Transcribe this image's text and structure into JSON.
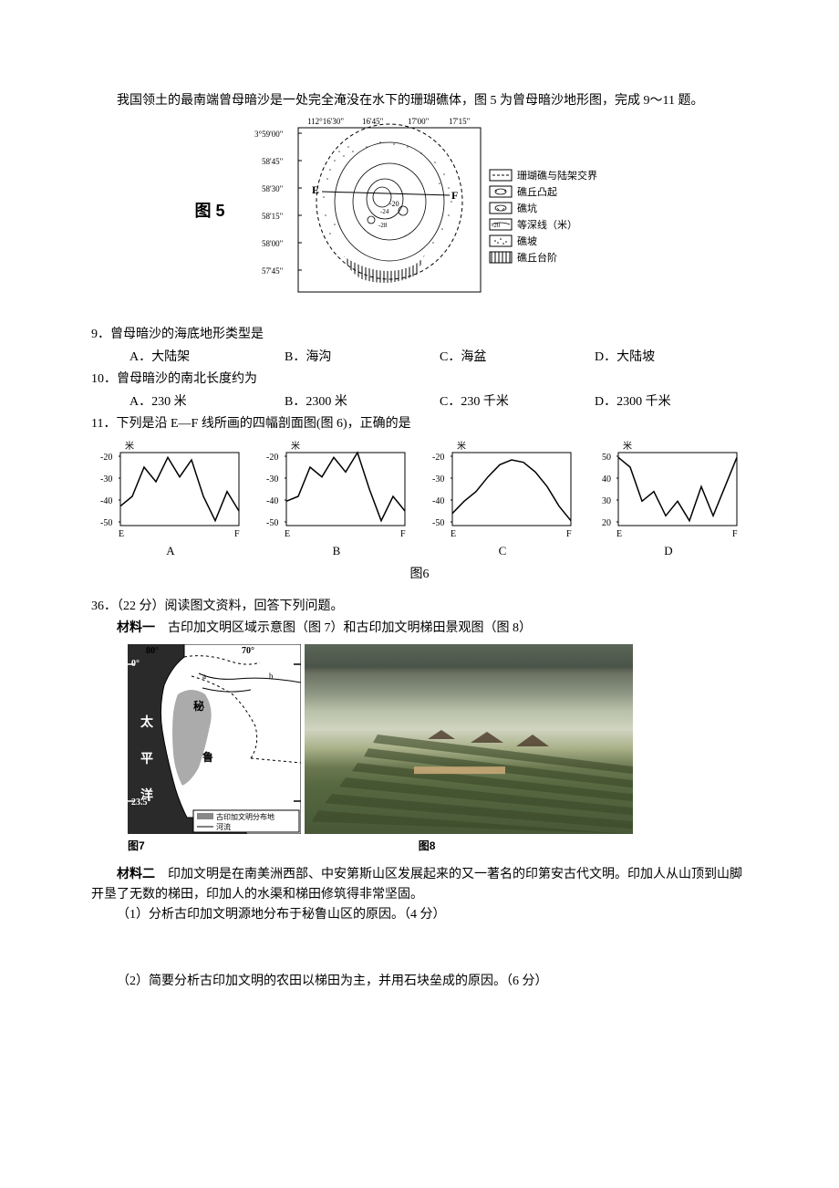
{
  "intro": "我国领土的最南端曾母暗沙是一处完全淹没在水下的珊瑚礁体，图 5 为曾母暗沙地形图，完成 9～11 题。",
  "figure5": {
    "label": "图 5",
    "lon_labels": [
      "112°16'30\"",
      "16'45\"",
      "17'00\"",
      "17'15\""
    ],
    "lat_labels": [
      "3°59'00\"",
      "58'45\"",
      "58'30\"",
      "58'15\"",
      "58'00\"",
      "57'45\""
    ],
    "points": {
      "E": "E",
      "F": "F"
    },
    "legend": [
      {
        "pattern": "dash",
        "label": "珊瑚礁与陆架交界"
      },
      {
        "pattern": "contour-peak",
        "label": "礁丘凸起"
      },
      {
        "pattern": "contour-pit",
        "label": "礁坑"
      },
      {
        "pattern": "contour-20",
        "label": "等深线（米）"
      },
      {
        "pattern": "dots",
        "label": "礁坡"
      },
      {
        "pattern": "hatch",
        "label": "礁丘台阶"
      }
    ],
    "contour_values": [
      "-20",
      "-24",
      "-28"
    ],
    "colors": {
      "outline": "#000000",
      "background": "#ffffff"
    }
  },
  "q9": {
    "number": "9",
    "text": "．曾母暗沙的海底地形类型是",
    "options": {
      "A": "A．大陆架",
      "B": "B．海沟",
      "C": "C．海盆",
      "D": "D．大陆坡"
    }
  },
  "q10": {
    "number": "10",
    "text": "．曾母暗沙的南北长度约为",
    "options": {
      "A": "A．230 米",
      "B": "B．2300 米",
      "C": "C．230 千米",
      "D": "D．2300 千米"
    }
  },
  "q11": {
    "number": "11",
    "text": "．下列是沿 E—F 线所画的四幅剖面图(图 6)，正确的是"
  },
  "profiles": {
    "yaxis_label": "米",
    "A": {
      "ylim": [
        -50,
        -20
      ],
      "yticks": [
        -50,
        -40,
        -30,
        -20
      ],
      "xlabels": [
        "E",
        "F"
      ],
      "data": [
        -42,
        -38,
        -26,
        -32,
        -22,
        -30,
        -23,
        -38,
        -48,
        -36,
        -44
      ]
    },
    "B": {
      "ylim": [
        -50,
        -20
      ],
      "yticks": [
        -50,
        -40,
        -30,
        -20
      ],
      "xlabels": [
        "E",
        "F"
      ],
      "data": [
        -40,
        -38,
        -26,
        -30,
        -22,
        -28,
        -20,
        -35,
        -48,
        -38,
        -44
      ]
    },
    "C": {
      "ylim": [
        -50,
        -20
      ],
      "yticks": [
        -50,
        -40,
        -30,
        -20
      ],
      "xlabels": [
        "E",
        "F"
      ],
      "data": [
        -45,
        -40,
        -36,
        -30,
        -25,
        -23,
        -24,
        -28,
        -34,
        -42,
        -48
      ]
    },
    "D": {
      "ylim": [
        20,
        50
      ],
      "yticks": [
        20,
        30,
        40,
        50
      ],
      "xlabels": [
        "E",
        "F"
      ],
      "data": [
        48,
        44,
        30,
        34,
        24,
        30,
        22,
        36,
        24,
        36,
        48
      ]
    },
    "labels": {
      "A": "A",
      "B": "B",
      "C": "C",
      "D": "D"
    },
    "line_color": "#000000",
    "axis_color": "#000000"
  },
  "figure6_label": "图6",
  "q36": {
    "number": "36",
    "text": "．（22 分）阅读图文资料，回答下列问题。",
    "material1": {
      "label": "材料一",
      "text": "　古印加文明区域示意图（图 7）和古印加文明梯田景观图（图 8）"
    },
    "figure7": {
      "lon_labels": [
        "80°",
        "70°"
      ],
      "lat_labels": [
        "0°",
        "23.5°"
      ],
      "ocean_label": "太平洋",
      "country_label": "秘",
      "country_label2": "鲁",
      "rivers": [
        "a",
        "b"
      ],
      "legend": [
        {
          "pattern": "shade",
          "label": "古印加文明分布地"
        },
        {
          "pattern": "line",
          "label": "河流"
        }
      ],
      "colors": {
        "ocean": "#2a2a2a",
        "land": "#ffffff",
        "civilization": "#888888"
      }
    },
    "figure7_label": "图7",
    "figure8_label": "图8",
    "material2": {
      "label": "材料二",
      "text": "　印加文明是在南美洲西部、中安第斯山区发展起来的又一著名的印第安古代文明。印加人从山顶到山脚开垦了无数的梯田，印加人的水渠和梯田修筑得非常坚固。"
    },
    "sub1": "（1）分析古印加文明源地分布于秘鲁山区的原因。（4 分）",
    "sub2": "（2）简要分析古印加文明的农田以梯田为主，并用石块垒成的原因。（6 分）"
  }
}
